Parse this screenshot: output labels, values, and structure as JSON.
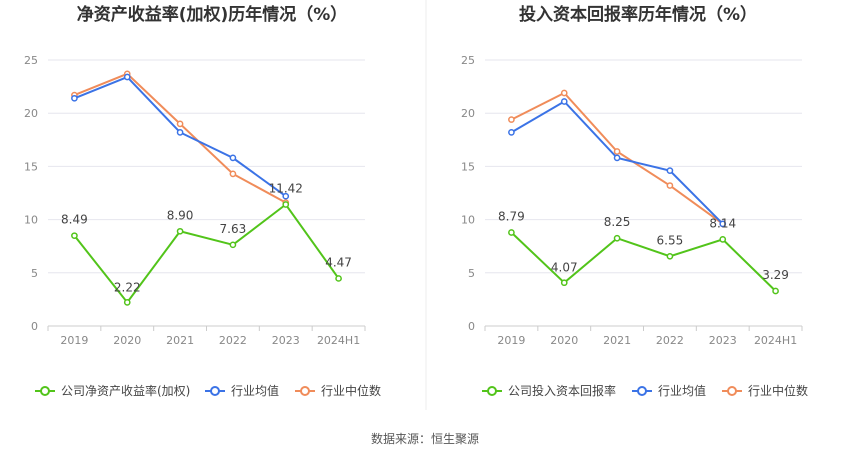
{
  "colors": {
    "company": "#52c41a",
    "avg": "#3b73e6",
    "median": "#f08c5a",
    "grid": "#e6e6ee"
  },
  "source": "数据来源：恒生聚源",
  "chart_data": [
    {
      "type": "line",
      "title": "净资产收益率(加权)历年情况（%）",
      "categories": [
        "2019",
        "2020",
        "2021",
        "2022",
        "2023",
        "2024H1"
      ],
      "ylim": [
        0,
        25
      ],
      "yticks": [
        "0",
        "5",
        "10",
        "15",
        "20",
        "25"
      ],
      "legend": [
        "公司净资产收益率(加权)",
        "行业均值",
        "行业中位数"
      ],
      "series": [
        {
          "name": "公司净资产收益率(加权)",
          "values": [
            8.49,
            2.22,
            8.9,
            7.63,
            11.42,
            4.47
          ],
          "labels": [
            "8.49",
            "2.22",
            "8.90",
            "7.63",
            "11.42",
            "4.47"
          ]
        },
        {
          "name": "行业均值",
          "values": [
            21.4,
            23.4,
            18.2,
            15.8,
            12.2,
            null
          ]
        },
        {
          "name": "行业中位数",
          "values": [
            21.7,
            23.7,
            19.0,
            14.3,
            11.6,
            null
          ]
        }
      ]
    },
    {
      "type": "line",
      "title": "投入资本回报率历年情况（%）",
      "categories": [
        "2019",
        "2020",
        "2021",
        "2022",
        "2023",
        "2024H1"
      ],
      "ylim": [
        0,
        25
      ],
      "yticks": [
        "0",
        "5",
        "10",
        "15",
        "20",
        "25"
      ],
      "legend": [
        "公司投入资本回报率",
        "行业均值",
        "行业中位数"
      ],
      "series": [
        {
          "name": "公司投入资本回报率",
          "values": [
            8.79,
            4.07,
            8.25,
            6.55,
            8.14,
            3.29
          ],
          "labels": [
            "8.79",
            "4.07",
            "8.25",
            "6.55",
            "8.14",
            "3.29"
          ]
        },
        {
          "name": "行业均值",
          "values": [
            18.2,
            21.1,
            15.8,
            14.6,
            9.6,
            null
          ]
        },
        {
          "name": "行业中位数",
          "values": [
            19.4,
            21.9,
            16.4,
            13.2,
            9.6,
            null
          ]
        }
      ]
    }
  ]
}
